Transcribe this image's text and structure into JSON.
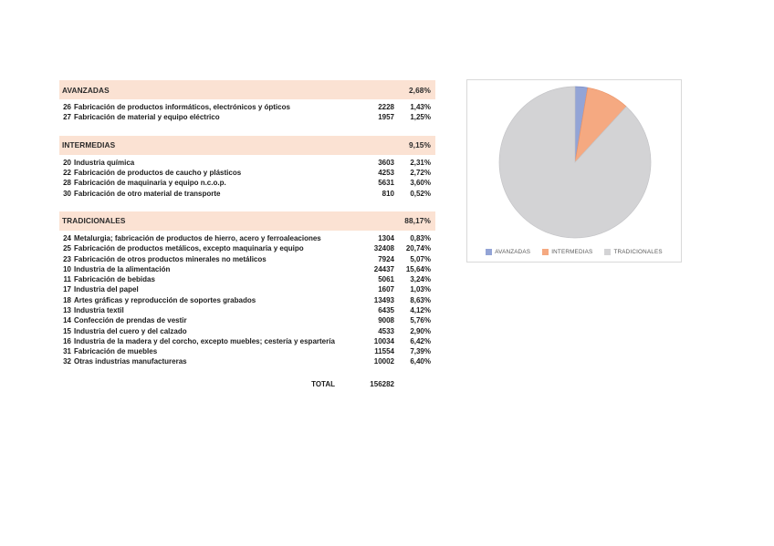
{
  "colors": {
    "header_band": "#fbe2d3",
    "panel_border": "#d9d9d9",
    "row_text": "#1c1c1c",
    "legend_text": "#595959"
  },
  "table": {
    "sections": [
      {
        "name": "AVANZADAS",
        "pct": "2,68%",
        "rows": [
          {
            "code": "26",
            "label": "Fabricación de productos informáticos, electrónicos y ópticos",
            "value": "2228",
            "pct": "1,43%"
          },
          {
            "code": "27",
            "label": "Fabricación de material y equipo eléctrico",
            "value": "1957",
            "pct": "1,25%"
          }
        ]
      },
      {
        "name": "INTERMEDIAS",
        "pct": "9,15%",
        "rows": [
          {
            "code": "20",
            "label": "Industria química",
            "value": "3603",
            "pct": "2,31%"
          },
          {
            "code": "22",
            "label": "Fabricación de productos de caucho y plásticos",
            "value": "4253",
            "pct": "2,72%"
          },
          {
            "code": "28",
            "label": "Fabricación de maquinaria y equipo n.c.o.p.",
            "value": "5631",
            "pct": "3,60%"
          },
          {
            "code": "30",
            "label": "Fabricación de otro material de transporte",
            "value": "810",
            "pct": "0,52%"
          }
        ]
      },
      {
        "name": "TRADICIONALES",
        "pct": "88,17%",
        "rows": [
          {
            "code": "24",
            "label": "Metalurgia; fabricación de productos de hierro, acero y ferroaleaciones",
            "value": "1304",
            "pct": "0,83%"
          },
          {
            "code": "25",
            "label": "Fabricación de productos metálicos, excepto maquinaria y equipo",
            "value": "32408",
            "pct": "20,74%"
          },
          {
            "code": "23",
            "label": "Fabricación de otros productos minerales no metálicos",
            "value": "7924",
            "pct": "5,07%"
          },
          {
            "code": "10",
            "label": "Industria de la alimentación",
            "value": "24437",
            "pct": "15,64%"
          },
          {
            "code": "11",
            "label": "Fabricación de bebidas",
            "value": "5061",
            "pct": "3,24%"
          },
          {
            "code": "17",
            "label": "Industria del papel",
            "value": "1607",
            "pct": "1,03%"
          },
          {
            "code": "18",
            "label": "Artes gráficas y reproducción de soportes grabados",
            "value": "13493",
            "pct": "8,63%"
          },
          {
            "code": "13",
            "label": "Industria textil",
            "value": "6435",
            "pct": "4,12%"
          },
          {
            "code": "14",
            "label": "Confección de prendas de vestir",
            "value": "9008",
            "pct": "5,76%"
          },
          {
            "code": "15",
            "label": "Industria del cuero y del calzado",
            "value": "4533",
            "pct": "2,90%"
          },
          {
            "code": "16",
            "label": "Industria de la madera y del corcho, excepto muebles; cestería y espartería",
            "value": "10034",
            "pct": "6,42%"
          },
          {
            "code": "31",
            "label": "Fabricación de muebles",
            "value": "11554",
            "pct": "7,39%"
          },
          {
            "code": "32",
            "label": "Otras industrias manufactureras",
            "value": "10002",
            "pct": "6,40%"
          }
        ]
      }
    ],
    "total_label": "TOTAL",
    "total_value": "156282"
  },
  "chart_data": {
    "type": "pie",
    "title": "",
    "categories": [
      "AVANZADAS",
      "INTERMEDIAS",
      "TRADICIONALES"
    ],
    "values": [
      2.68,
      9.15,
      88.17
    ],
    "colors": [
      "#93a4d6",
      "#f5a981",
      "#d3d3d5"
    ],
    "stroke_colors": [
      "#7d90c8",
      "#ea9468",
      "#c4c4c7"
    ],
    "legend_position": "bottom",
    "start_angle": "12-o-clock, clockwise"
  }
}
